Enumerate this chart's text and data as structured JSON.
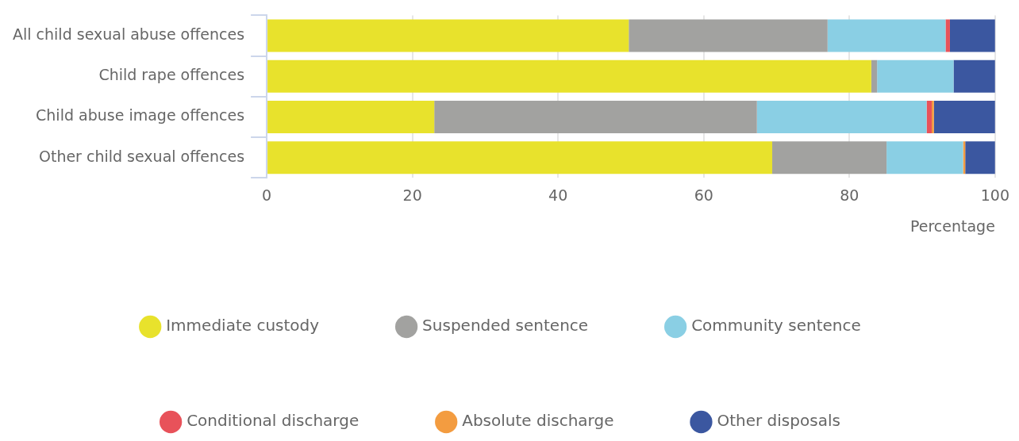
{
  "chart_data": {
    "type": "bar",
    "orientation": "horizontal",
    "stacked": true,
    "categories": [
      "All child sexual abuse offences",
      "Child rape offences",
      "Child abuse image offences",
      "Other child sexual offences"
    ],
    "series": [
      {
        "name": "Immediate custody",
        "color": "#e8e22c",
        "values": [
          49.7,
          83.0,
          23.0,
          69.4
        ]
      },
      {
        "name": "Suspended sentence",
        "color": "#a2a2a0",
        "values": [
          27.3,
          0.8,
          44.3,
          15.7
        ]
      },
      {
        "name": "Community sentence",
        "color": "#8acfe4",
        "values": [
          16.2,
          10.5,
          23.3,
          10.5
        ]
      },
      {
        "name": "Conditional discharge",
        "color": "#e8525a",
        "values": [
          0.6,
          0,
          0.7,
          0
        ]
      },
      {
        "name": "Absolute discharge",
        "color": "#f39c40",
        "values": [
          0,
          0,
          0.3,
          0.3
        ]
      },
      {
        "name": "Other disposals",
        "color": "#3b57a0",
        "values": [
          6.2,
          5.7,
          8.4,
          4.1
        ]
      }
    ],
    "xlim": [
      0,
      100
    ],
    "xticks": [
      0,
      20,
      40,
      60,
      80,
      100
    ],
    "xlabel": "Percentage",
    "grid": "x",
    "legend": "bottom"
  }
}
